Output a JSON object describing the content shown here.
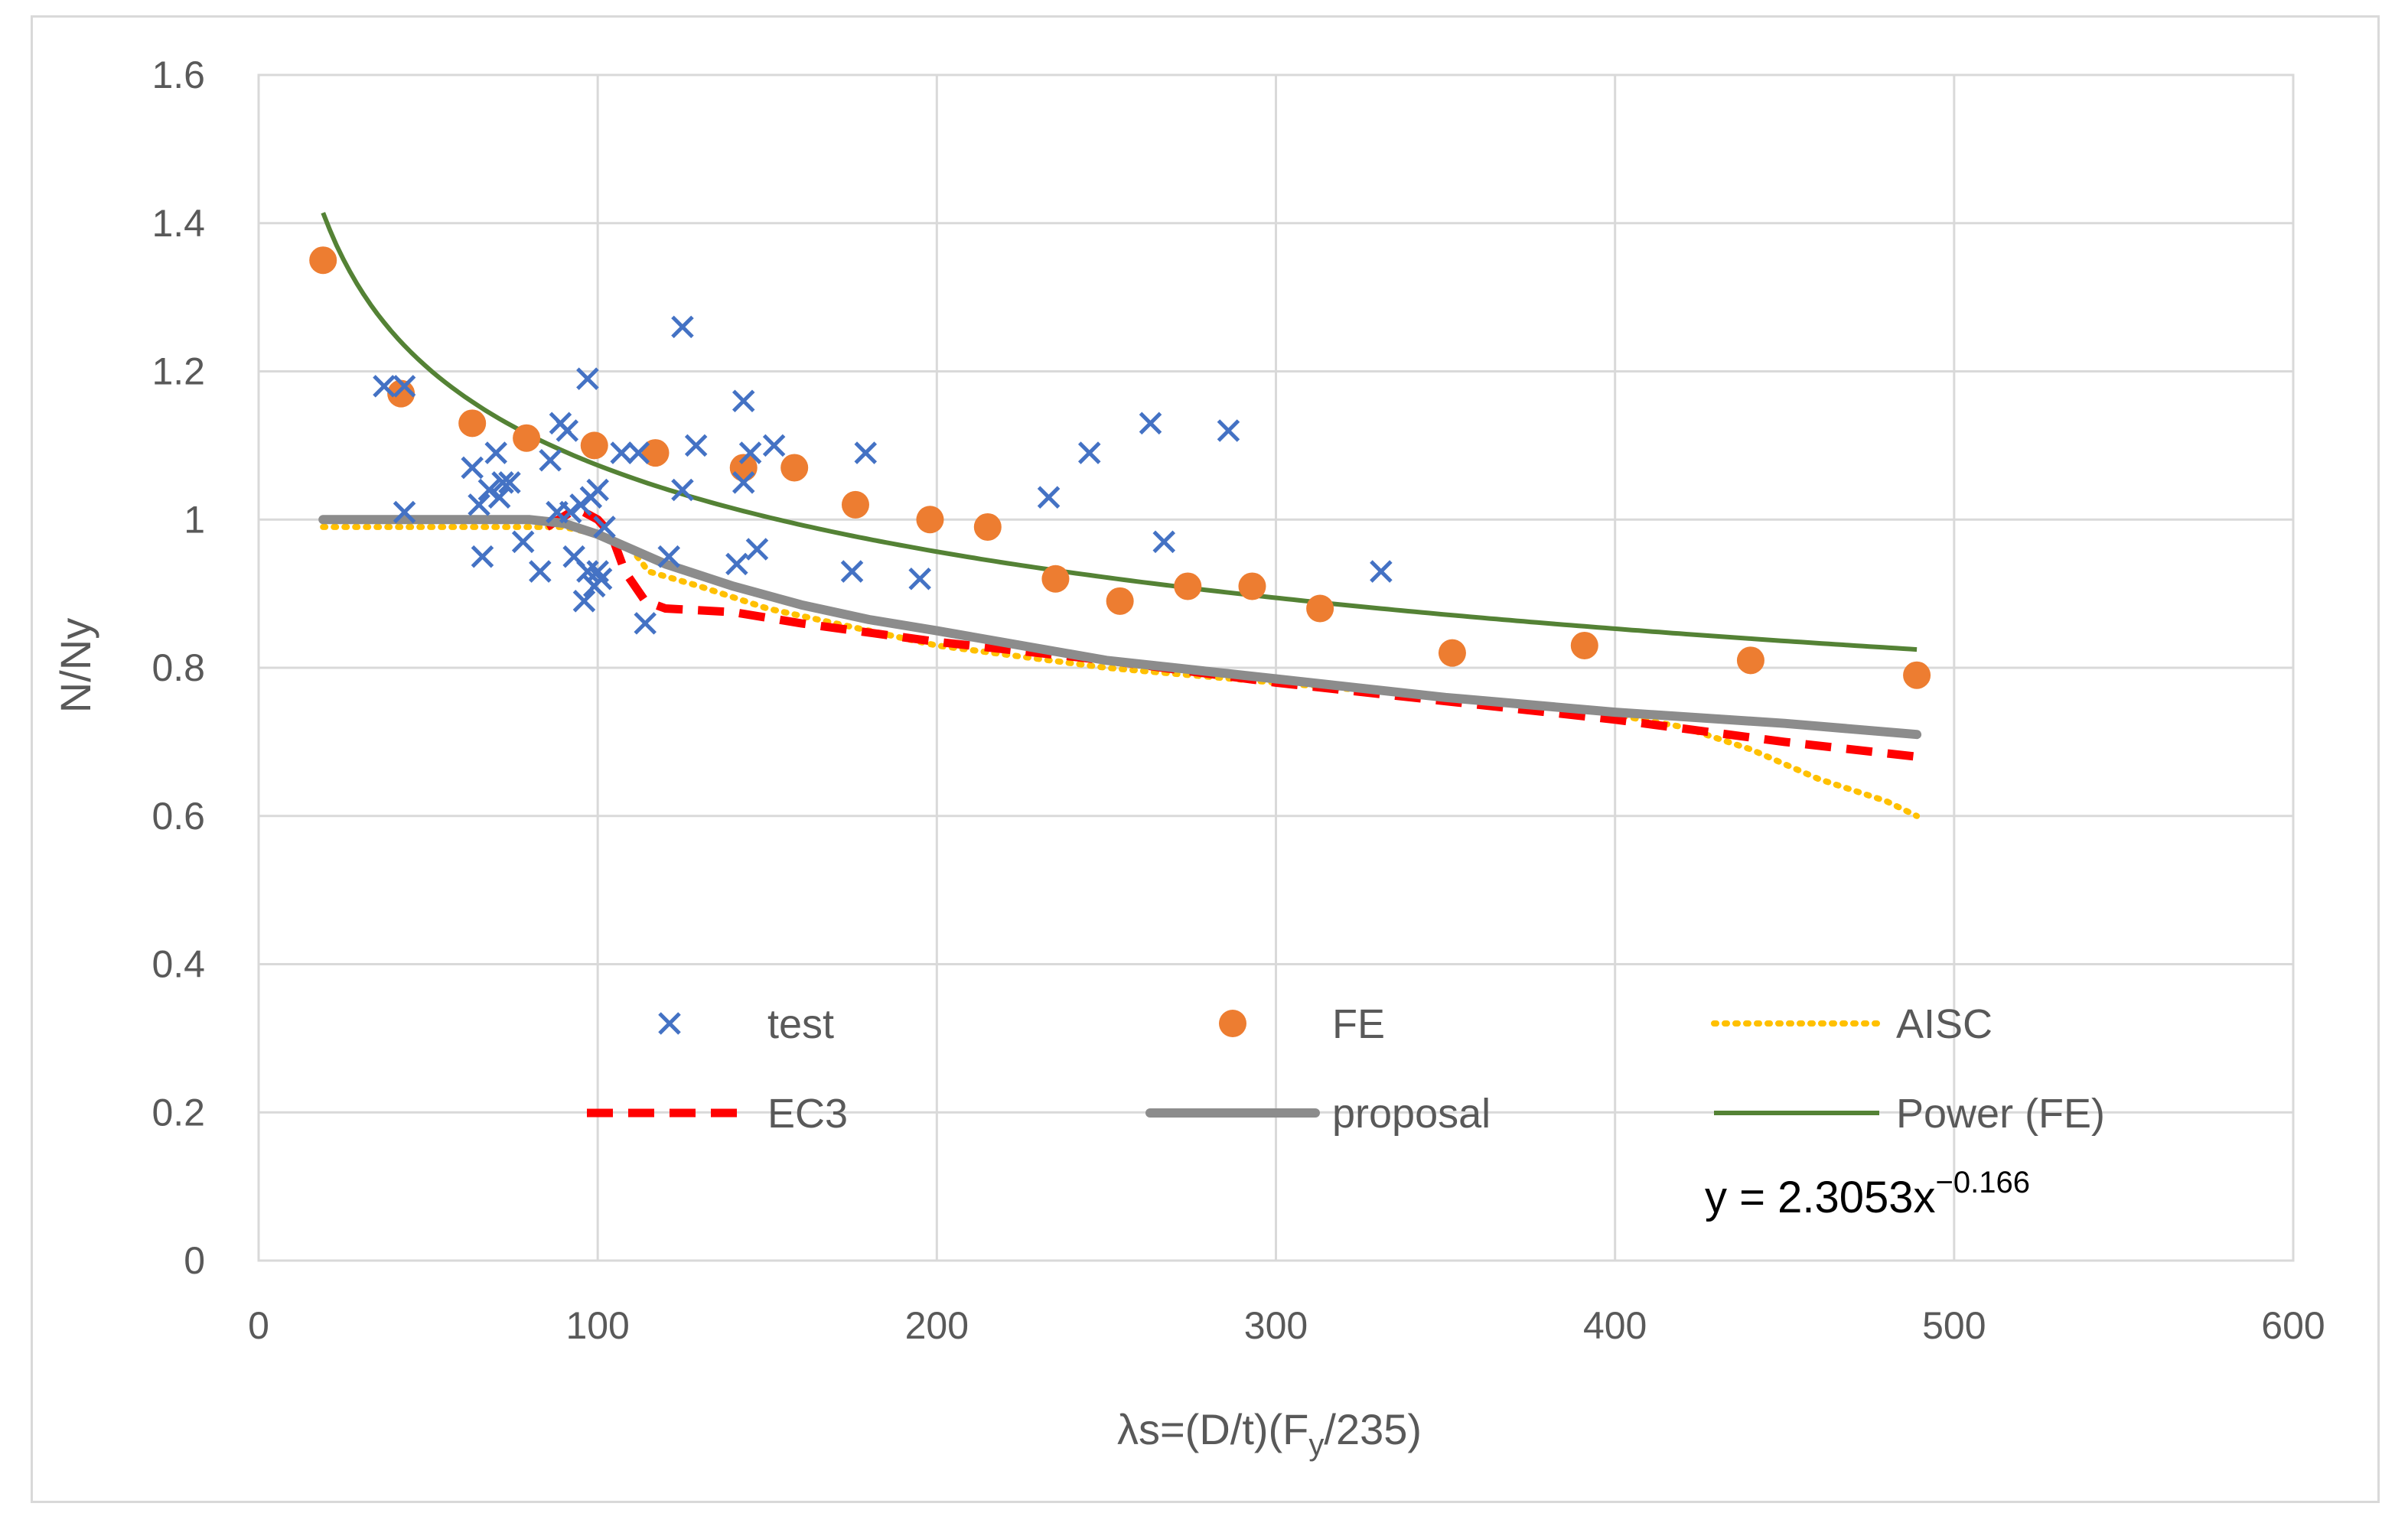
{
  "chart_data": {
    "type": "scatter",
    "title": "",
    "xlabel_main": "λs=(D/t)(F",
    "xlabel_sub": "y",
    "xlabel_tail": "/235)",
    "ylabel": "N/Ny",
    "xlim": [
      0,
      600
    ],
    "ylim": [
      0,
      1.6
    ],
    "x_ticks": [
      "0",
      "100",
      "200",
      "300",
      "400",
      "500",
      "600"
    ],
    "y_ticks": [
      "0",
      "0.2",
      "0.4",
      "0.6",
      "0.8",
      "1",
      "1.2",
      "1.4",
      "1.6"
    ],
    "x_tick_values": [
      0,
      100,
      200,
      300,
      400,
      500,
      600
    ],
    "y_tick_values": [
      0,
      0.2,
      0.4,
      0.6,
      0.8,
      1.0,
      1.2,
      1.4,
      1.6
    ],
    "grid": true,
    "legend_position": "bottom-inside",
    "series": [
      {
        "name": "test",
        "kind": "marker-x",
        "color": "#4472c4",
        "points": [
          [
            37,
            1.18
          ],
          [
            43,
            1.18
          ],
          [
            43,
            1.01
          ],
          [
            63,
            1.07
          ],
          [
            65,
            1.02
          ],
          [
            66,
            0.95
          ],
          [
            68,
            1.04
          ],
          [
            70,
            1.09
          ],
          [
            71,
            1.03
          ],
          [
            72,
            1.05
          ],
          [
            74,
            1.05
          ],
          [
            78,
            0.97
          ],
          [
            83,
            0.93
          ],
          [
            86,
            1.08
          ],
          [
            88,
            1.01
          ],
          [
            89,
            1.13
          ],
          [
            91,
            1.12
          ],
          [
            92,
            1.01
          ],
          [
            93,
            0.95
          ],
          [
            95,
            1.02
          ],
          [
            96,
            0.89
          ],
          [
            97,
            0.93
          ],
          [
            97,
            1.19
          ],
          [
            98,
            1.03
          ],
          [
            99,
            0.91
          ],
          [
            100,
            1.04
          ],
          [
            100,
            0.93
          ],
          [
            101,
            0.92
          ],
          [
            102,
            0.99
          ],
          [
            107,
            1.09
          ],
          [
            112,
            1.09
          ],
          [
            114,
            0.86
          ],
          [
            121,
            0.95
          ],
          [
            125,
            1.26
          ],
          [
            125,
            1.04
          ],
          [
            129,
            1.1
          ],
          [
            141,
            0.94
          ],
          [
            143,
            1.16
          ],
          [
            143,
            1.05
          ],
          [
            145,
            1.09
          ],
          [
            147,
            0.96
          ],
          [
            152,
            1.1
          ],
          [
            175,
            0.93
          ],
          [
            179,
            1.09
          ],
          [
            195,
            0.92
          ],
          [
            233,
            1.03
          ],
          [
            245,
            1.09
          ],
          [
            263,
            1.13
          ],
          [
            267,
            0.97
          ],
          [
            286,
            1.12
          ],
          [
            331,
            0.93
          ]
        ]
      },
      {
        "name": "FE",
        "kind": "marker-circle",
        "color": "#ed7d31",
        "points": [
          [
            19,
            1.35
          ],
          [
            42,
            1.17
          ],
          [
            63,
            1.13
          ],
          [
            79,
            1.11
          ],
          [
            99,
            1.1
          ],
          [
            117,
            1.09
          ],
          [
            143,
            1.07
          ],
          [
            158,
            1.07
          ],
          [
            176,
            1.02
          ],
          [
            198,
            1.0
          ],
          [
            215,
            0.99
          ],
          [
            235,
            0.92
          ],
          [
            254,
            0.89
          ],
          [
            274,
            0.91
          ],
          [
            293,
            0.91
          ],
          [
            313,
            0.88
          ],
          [
            352,
            0.82
          ],
          [
            391,
            0.83
          ],
          [
            440,
            0.81
          ],
          [
            489,
            0.79
          ]
        ]
      },
      {
        "name": "AISC",
        "kind": "line-dotted",
        "color": "#ffc000",
        "points": [
          [
            19,
            0.99
          ],
          [
            60,
            0.99
          ],
          [
            90,
            0.99
          ],
          [
            100,
            0.98
          ],
          [
            110,
            0.96
          ],
          [
            115,
            0.93
          ],
          [
            130,
            0.91
          ],
          [
            150,
            0.88
          ],
          [
            200,
            0.83
          ],
          [
            250,
            0.8
          ],
          [
            300,
            0.78
          ],
          [
            350,
            0.76
          ],
          [
            390,
            0.745
          ],
          [
            420,
            0.72
          ],
          [
            440,
            0.69
          ],
          [
            460,
            0.65
          ],
          [
            480,
            0.62
          ],
          [
            489,
            0.6
          ]
        ]
      },
      {
        "name": "EC3",
        "kind": "line-dashed",
        "color": "#ff0000",
        "points": [
          [
            85,
            0.99
          ],
          [
            92,
            1.01
          ],
          [
            96,
            1.01
          ],
          [
            100,
            1.0
          ],
          [
            104,
            0.98
          ],
          [
            108,
            0.93
          ],
          [
            114,
            0.89
          ],
          [
            120,
            0.88
          ],
          [
            140,
            0.875
          ],
          [
            160,
            0.86
          ],
          [
            200,
            0.835
          ],
          [
            250,
            0.81
          ],
          [
            300,
            0.78
          ],
          [
            350,
            0.755
          ],
          [
            400,
            0.73
          ],
          [
            450,
            0.7
          ],
          [
            489,
            0.68
          ]
        ]
      },
      {
        "name": "proposal",
        "kind": "line-solid-thick",
        "color": "#8c8c8c",
        "points": [
          [
            19,
            1.0
          ],
          [
            60,
            1.0
          ],
          [
            80,
            1.0
          ],
          [
            90,
            0.995
          ],
          [
            100,
            0.98
          ],
          [
            110,
            0.96
          ],
          [
            120,
            0.94
          ],
          [
            140,
            0.91
          ],
          [
            160,
            0.885
          ],
          [
            180,
            0.865
          ],
          [
            200,
            0.85
          ],
          [
            250,
            0.81
          ],
          [
            300,
            0.785
          ],
          [
            350,
            0.76
          ],
          [
            400,
            0.74
          ],
          [
            450,
            0.725
          ],
          [
            489,
            0.71
          ]
        ]
      },
      {
        "name": "Power (FE)",
        "kind": "power-trend",
        "color": "#548235",
        "coefficient": 2.3053,
        "exponent": -0.166,
        "x_range": [
          19,
          489
        ]
      }
    ],
    "annotation": {
      "text_prefix": "y = 2.3053x",
      "text_superscript": "−0.166"
    }
  }
}
